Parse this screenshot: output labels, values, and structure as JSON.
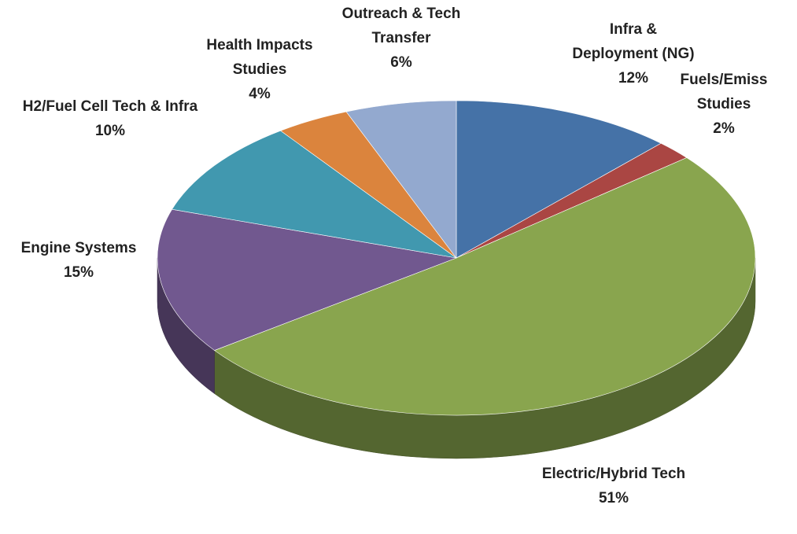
{
  "chart_data": {
    "type": "pie",
    "categories": [
      "Infra & Deployment (NG)",
      "Fuels/Emiss Studies",
      "Electric/Hybrid Tech",
      "Engine Systems",
      "H2/Fuel Cell Tech & Infra",
      "Health Impacts Studies",
      "Outreach & Tech Transfer"
    ],
    "values": [
      12,
      2,
      51,
      15,
      10,
      4,
      6
    ],
    "value_labels": [
      "12%",
      "2%",
      "51%",
      "15%",
      "10%",
      "4%",
      "6%"
    ],
    "colors": [
      "#4572a7",
      "#aa4643",
      "#89a54e",
      "#71588f",
      "#4198af",
      "#db843d",
      "#93a9cf"
    ]
  }
}
